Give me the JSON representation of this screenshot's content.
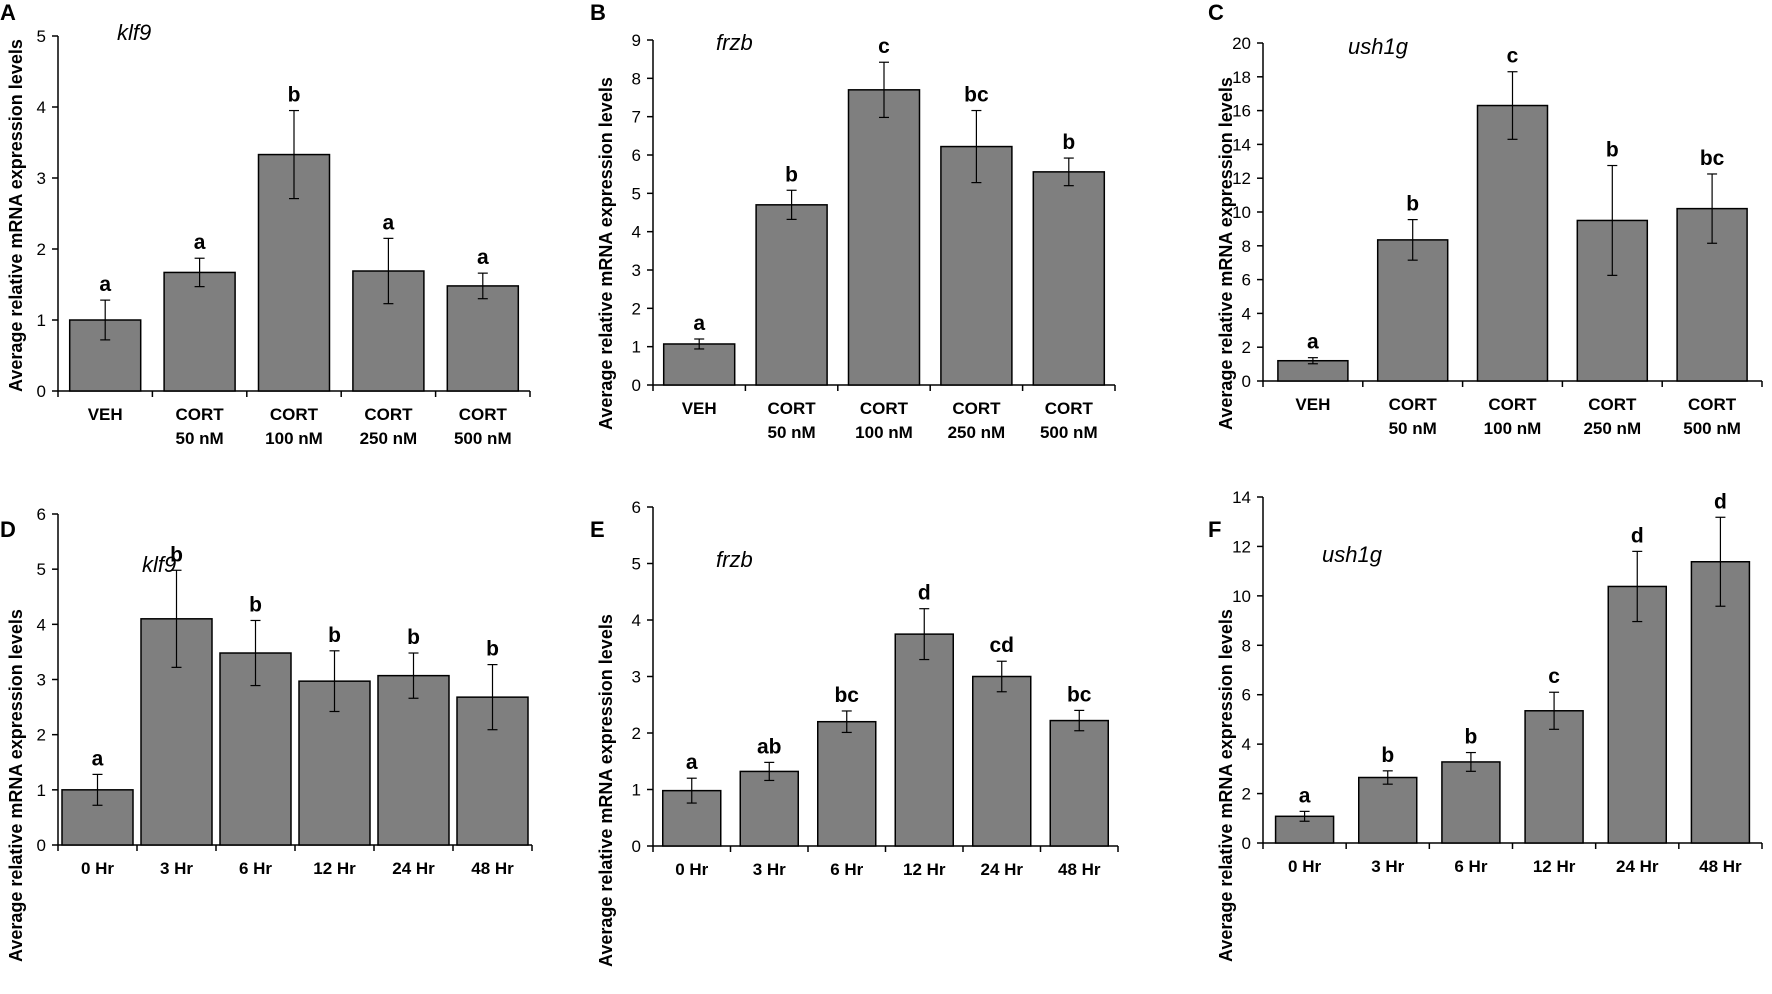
{
  "colors": {
    "bar_fill": "#7f7f7f",
    "bar_stroke": "#000000",
    "axis": "#000000"
  },
  "chart_data": [
    {
      "panel": "A",
      "type": "bar",
      "title": "klf9",
      "ylabel": "Average relative mRNA expression levels",
      "ylim": [
        0,
        5
      ],
      "yticks": [
        0,
        1,
        2,
        3,
        4,
        5
      ],
      "categories": [
        [
          "VEH"
        ],
        [
          "CORT",
          "50 nM"
        ],
        [
          "CORT",
          "100 nM"
        ],
        [
          "CORT",
          "250 nM"
        ],
        [
          "CORT",
          "500 nM"
        ]
      ],
      "values": [
        1.0,
        1.67,
        3.33,
        1.69,
        1.48
      ],
      "errors": [
        0.28,
        0.2,
        0.62,
        0.46,
        0.18
      ],
      "labels": [
        "a",
        "a",
        "b",
        "a",
        "a"
      ]
    },
    {
      "panel": "B",
      "type": "bar",
      "title": "frzb",
      "ylabel": "Average relative mRNA expression levels",
      "ylim": [
        0,
        9
      ],
      "yticks": [
        0,
        1,
        2,
        3,
        4,
        5,
        6,
        7,
        8,
        9
      ],
      "categories": [
        [
          "VEH"
        ],
        [
          "CORT",
          "50 nM"
        ],
        [
          "CORT",
          "100 nM"
        ],
        [
          "CORT",
          "250 nM"
        ],
        [
          "CORT",
          "500 nM"
        ]
      ],
      "values": [
        1.07,
        4.7,
        7.7,
        6.22,
        5.56
      ],
      "errors": [
        0.13,
        0.38,
        0.72,
        0.94,
        0.36
      ],
      "labels": [
        "a",
        "b",
        "c",
        "bc",
        "b"
      ]
    },
    {
      "panel": "C",
      "type": "bar",
      "title": "ush1g",
      "ylabel": "Average relative mRNA expression levels",
      "ylim": [
        0,
        20
      ],
      "yticks": [
        0,
        2,
        4,
        6,
        8,
        10,
        12,
        14,
        16,
        18,
        20
      ],
      "categories": [
        [
          "VEH"
        ],
        [
          "CORT",
          "50 nM"
        ],
        [
          "CORT",
          "100 nM"
        ],
        [
          "CORT",
          "250 nM"
        ],
        [
          "CORT",
          "500 nM"
        ]
      ],
      "values": [
        1.2,
        8.35,
        16.3,
        9.5,
        10.2
      ],
      "errors": [
        0.18,
        1.2,
        2.0,
        3.25,
        2.05
      ],
      "labels": [
        "a",
        "b",
        "c",
        "b",
        "bc"
      ]
    },
    {
      "panel": "D",
      "type": "bar",
      "title": "klf9",
      "ylabel": "Average relative mRNA expression levels",
      "ylim": [
        0,
        6
      ],
      "yticks": [
        0,
        1,
        2,
        3,
        4,
        5,
        6
      ],
      "categories": [
        [
          "0 Hr"
        ],
        [
          "3 Hr"
        ],
        [
          "6 Hr"
        ],
        [
          "12 Hr"
        ],
        [
          "24 Hr"
        ],
        [
          "48 Hr"
        ]
      ],
      "values": [
        1.0,
        4.1,
        3.48,
        2.97,
        3.07,
        2.68
      ],
      "errors": [
        0.28,
        0.88,
        0.59,
        0.55,
        0.41,
        0.59
      ],
      "labels": [
        "a",
        "b",
        "b",
        "b",
        "b",
        "b"
      ]
    },
    {
      "panel": "E",
      "type": "bar",
      "title": "frzb",
      "ylabel": "Average relative mRNA expression levels",
      "ylim": [
        0,
        6
      ],
      "yticks": [
        0,
        1,
        2,
        3,
        4,
        5,
        6
      ],
      "categories": [
        [
          "0 Hr"
        ],
        [
          "3 Hr"
        ],
        [
          "6 Hr"
        ],
        [
          "12 Hr"
        ],
        [
          "24 Hr"
        ],
        [
          "48 Hr"
        ]
      ],
      "values": [
        0.98,
        1.32,
        2.2,
        3.75,
        3.0,
        2.22
      ],
      "errors": [
        0.22,
        0.16,
        0.19,
        0.45,
        0.27,
        0.18
      ],
      "labels": [
        "a",
        "ab",
        "bc",
        "d",
        "cd",
        "bc"
      ]
    },
    {
      "panel": "F",
      "type": "bar",
      "title": "ush1g",
      "ylabel": "Average relative mRNA expression levels",
      "ylim": [
        0,
        14
      ],
      "yticks": [
        0,
        2,
        4,
        6,
        8,
        10,
        12,
        14
      ],
      "categories": [
        [
          "0 Hr"
        ],
        [
          "3 Hr"
        ],
        [
          "6 Hr"
        ],
        [
          "12 Hr"
        ],
        [
          "24 Hr"
        ],
        [
          "48 Hr"
        ]
      ],
      "values": [
        1.08,
        2.65,
        3.28,
        5.35,
        10.38,
        11.38
      ],
      "errors": [
        0.2,
        0.27,
        0.38,
        0.75,
        1.42,
        1.8
      ],
      "labels": [
        "a",
        "b",
        "b",
        "c",
        "d",
        "d"
      ]
    }
  ]
}
